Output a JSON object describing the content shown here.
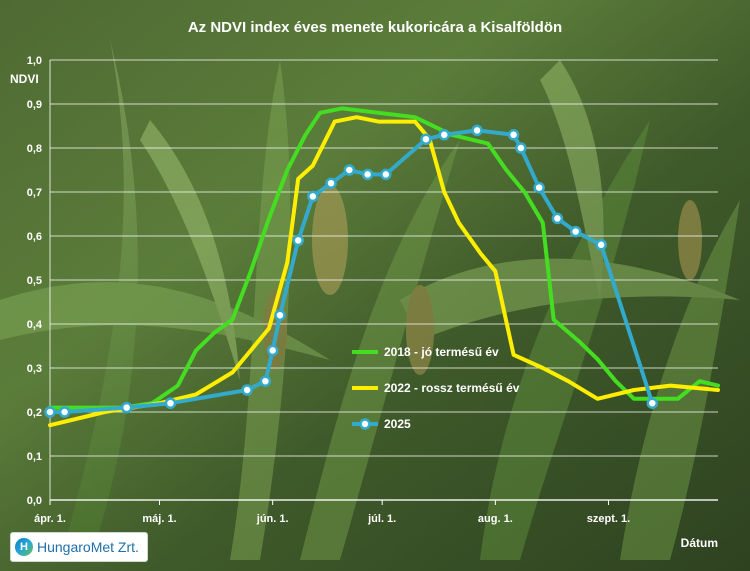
{
  "logo_text": "HungaroMet Zrt.",
  "chart_data": {
    "type": "line",
    "title": "Az NDVI index éves menete kukoricára a Kisalföldön",
    "ylabel": "NDVI",
    "xlabel": "Dátum",
    "ylim": [
      0,
      1.0
    ],
    "yticks": [
      "0,0",
      "0,1",
      "0,2",
      "0,3",
      "0,4",
      "0,5",
      "0,6",
      "0,7",
      "0,8",
      "0,9",
      "1,0"
    ],
    "xlim": [
      0,
      183
    ],
    "xticks": [
      {
        "label": "ápr. 1.",
        "x": 0
      },
      {
        "label": "máj. 1.",
        "x": 30
      },
      {
        "label": "jún. 1.",
        "x": 61
      },
      {
        "label": "júl. 1.",
        "x": 91
      },
      {
        "label": "aug. 1.",
        "x": 122
      },
      {
        "label": "szept. 1.",
        "x": 153
      }
    ],
    "grid": true,
    "legend_position": "right",
    "series": [
      {
        "name": "2018 - jó termésű év",
        "color": "#44dd22",
        "marker": "none",
        "points": [
          [
            0,
            0.21
          ],
          [
            10,
            0.21
          ],
          [
            20,
            0.21
          ],
          [
            28,
            0.22
          ],
          [
            35,
            0.26
          ],
          [
            40,
            0.34
          ],
          [
            45,
            0.38
          ],
          [
            50,
            0.41
          ],
          [
            55,
            0.52
          ],
          [
            60,
            0.64
          ],
          [
            65,
            0.75
          ],
          [
            70,
            0.83
          ],
          [
            74,
            0.88
          ],
          [
            80,
            0.89
          ],
          [
            90,
            0.88
          ],
          [
            100,
            0.87
          ],
          [
            110,
            0.83
          ],
          [
            115,
            0.82
          ],
          [
            120,
            0.81
          ],
          [
            125,
            0.75
          ],
          [
            130,
            0.7
          ],
          [
            135,
            0.63
          ],
          [
            138,
            0.41
          ],
          [
            145,
            0.36
          ],
          [
            150,
            0.32
          ],
          [
            155,
            0.27
          ],
          [
            160,
            0.23
          ],
          [
            167,
            0.23
          ],
          [
            172,
            0.23
          ],
          [
            178,
            0.27
          ],
          [
            183,
            0.26
          ]
        ]
      },
      {
        "name": "2022 - rossz termésű év",
        "color": "#ffee00",
        "marker": "none",
        "points": [
          [
            0,
            0.17
          ],
          [
            5,
            0.18
          ],
          [
            15,
            0.2
          ],
          [
            30,
            0.22
          ],
          [
            40,
            0.24
          ],
          [
            50,
            0.29
          ],
          [
            55,
            0.34
          ],
          [
            60,
            0.39
          ],
          [
            65,
            0.54
          ],
          [
            68,
            0.73
          ],
          [
            72,
            0.76
          ],
          [
            78,
            0.86
          ],
          [
            84,
            0.87
          ],
          [
            90,
            0.86
          ],
          [
            100,
            0.86
          ],
          [
            104,
            0.82
          ],
          [
            108,
            0.7
          ],
          [
            112,
            0.63
          ],
          [
            118,
            0.56
          ],
          [
            122,
            0.52
          ],
          [
            127,
            0.33
          ],
          [
            135,
            0.3
          ],
          [
            142,
            0.27
          ],
          [
            150,
            0.23
          ],
          [
            160,
            0.25
          ],
          [
            170,
            0.26
          ],
          [
            183,
            0.25
          ]
        ]
      },
      {
        "name": "2025",
        "color": "#33aacc",
        "marker": "circle",
        "points": [
          [
            0,
            0.2
          ],
          [
            4,
            0.2
          ],
          [
            21,
            0.21
          ],
          [
            33,
            0.22
          ],
          [
            54,
            0.25
          ],
          [
            59,
            0.27
          ],
          [
            61,
            0.34
          ],
          [
            63,
            0.42
          ],
          [
            68,
            0.59
          ],
          [
            72,
            0.69
          ],
          [
            77,
            0.72
          ],
          [
            82,
            0.75
          ],
          [
            87,
            0.74
          ],
          [
            92,
            0.74
          ],
          [
            103,
            0.82
          ],
          [
            108,
            0.83
          ],
          [
            117,
            0.84
          ],
          [
            127,
            0.83
          ],
          [
            129,
            0.8
          ],
          [
            134,
            0.71
          ],
          [
            139,
            0.64
          ],
          [
            144,
            0.61
          ],
          [
            151,
            0.58
          ],
          [
            165,
            0.22
          ]
        ]
      }
    ]
  }
}
